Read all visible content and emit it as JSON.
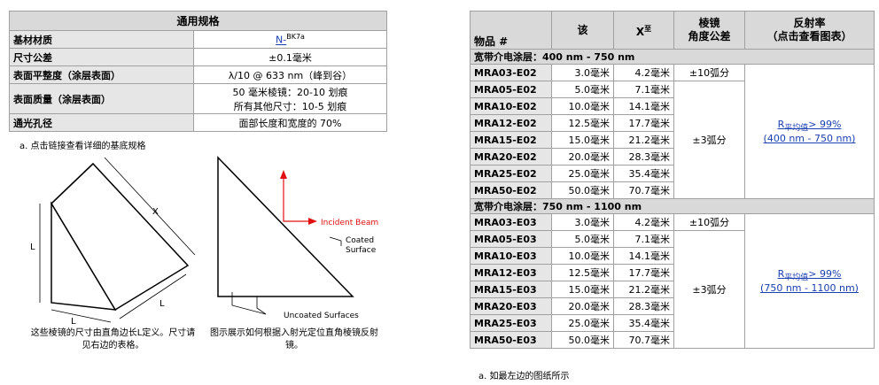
{
  "spec_table": {
    "title": "通用规格",
    "rows": [
      {
        "label": "基材材质",
        "value": {
          "link": "N-",
          "sup": "BK7a"
        }
      },
      {
        "label": "尺寸公差",
        "value": "±0.1毫米"
      },
      {
        "label": "表面平整度（涂层表面）",
        "value": "λ/10 @ 633 nm（峰到谷）"
      },
      {
        "label": "表面质量（涂层表面）",
        "value": [
          "50 毫米棱镜：20-10 划痕",
          "所有其他尺寸：10-5 划痕"
        ]
      },
      {
        "label": "通光孔径",
        "value": "面部长度和宽度的 70%"
      }
    ],
    "footnote": "a. 点击链接查看详细的基底规格"
  },
  "diagrams": [
    {
      "labels": [
        "X",
        "L",
        "L",
        "L"
      ],
      "caption": "这些棱镜的尺寸由直角边长L定义。尺寸请见右边的表格。"
    },
    {
      "labels": [
        "Incident Beam",
        "Coated",
        "Surface",
        "Uncoated Surfaces"
      ],
      "caption": "图示展示如何根据入射光定位直角棱镜反射镜。"
    }
  ],
  "product_table": {
    "columns": [
      [
        "物品 #"
      ],
      [
        "该"
      ],
      {
        "text": "X",
        "sup": "至"
      },
      [
        "棱镜",
        "角度公差"
      ],
      [
        "反射率",
        "（点击查看图表）"
      ]
    ],
    "groups": [
      {
        "title": "宽带介电涂层：400 nm - 750 nm",
        "rows": [
          [
            "MRA03-E02",
            "3.0毫米",
            "4.2毫米"
          ],
          [
            "MRA05-E02",
            "5.0毫米",
            "7.1毫米"
          ],
          [
            "MRA10-E02",
            "10.0毫米",
            "14.1毫米"
          ],
          [
            "MRA12-E02",
            "12.5毫米",
            "17.7毫米"
          ],
          [
            "MRA15-E02",
            "15.0毫米",
            "21.2毫米"
          ],
          [
            "MRA20-E02",
            "20.0毫米",
            "28.3毫米"
          ],
          [
            "MRA25-E02",
            "25.0毫米",
            "35.4毫米"
          ],
          [
            "MRA50-E02",
            "50.0毫米",
            "70.7毫米"
          ]
        ],
        "tolerance_first": "±10弧分",
        "tolerance_rest": "±3弧分",
        "reflectance": {
          "r": "R",
          "sub": "平均值",
          "value": "> 99%",
          "range": "(400 nm - 750 nm)"
        }
      },
      {
        "title": "宽带介电涂层：750 nm - 1100 nm",
        "rows": [
          [
            "MRA03-E03",
            "3.0毫米",
            "4.2毫米"
          ],
          [
            "MRA05-E03",
            "5.0毫米",
            "7.1毫米"
          ],
          [
            "MRA10-E03",
            "10.0毫米",
            "14.1毫米"
          ],
          [
            "MRA12-E03",
            "12.5毫米",
            "17.7毫米"
          ],
          [
            "MRA15-E03",
            "15.0毫米",
            "21.2毫米"
          ],
          [
            "MRA20-E03",
            "20.0毫米",
            "28.3毫米"
          ],
          [
            "MRA25-E03",
            "25.0毫米",
            "35.4毫米"
          ],
          [
            "MRA50-E03",
            "50.0毫米",
            "70.7毫米"
          ]
        ],
        "tolerance_first": "±10弧分",
        "tolerance_rest": "±3弧分",
        "reflectance": {
          "r": "R",
          "sub": "平均值",
          "value": "> 99%",
          "range": "(750 nm - 1100 nm)"
        }
      }
    ],
    "footnote": "a. 如最左边的图纸所示"
  }
}
